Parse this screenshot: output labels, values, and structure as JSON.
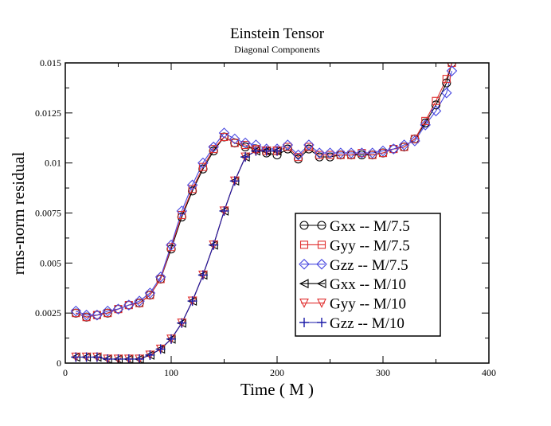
{
  "chart_data": {
    "type": "line",
    "title": "Einstein Tensor",
    "subtitle": "Diagonal Components",
    "xlabel": "Time ( M )",
    "ylabel": "rms-norm residual",
    "xlim": [
      0,
      400
    ],
    "ylim": [
      0,
      0.015
    ],
    "xticks": [
      0,
      100,
      200,
      300,
      400
    ],
    "xtick_labels": [
      "0",
      "100",
      "200",
      "300",
      "400"
    ],
    "yticks": [
      0,
      0.0025,
      0.005,
      0.0075,
      0.01,
      0.0125,
      0.015
    ],
    "ytick_labels": [
      "0",
      "0.0025",
      "0.005",
      "0.0075",
      "0.01",
      "0.0125",
      "0.015"
    ],
    "legend_position": "lower-right",
    "series": [
      {
        "name": "Gxx -- M/7.5",
        "color": "#000000",
        "marker": "circle",
        "x": [
          10,
          20,
          30,
          40,
          50,
          60,
          70,
          80,
          90,
          100,
          110,
          120,
          130,
          140,
          150,
          160,
          170,
          180,
          190,
          200,
          210,
          220,
          230,
          240,
          250,
          260,
          270,
          280,
          290,
          300,
          310,
          320,
          330,
          340,
          350,
          360,
          365
        ],
        "y": [
          0.0025,
          0.0023,
          0.0024,
          0.0025,
          0.0027,
          0.0029,
          0.003,
          0.0034,
          0.0042,
          0.0057,
          0.0073,
          0.0086,
          0.0097,
          0.0106,
          0.0113,
          0.011,
          0.0108,
          0.0107,
          0.0105,
          0.0104,
          0.0107,
          0.0102,
          0.0107,
          0.0103,
          0.0103,
          0.0104,
          0.0104,
          0.0104,
          0.0104,
          0.0105,
          0.0107,
          0.0108,
          0.0112,
          0.012,
          0.0129,
          0.014,
          0.015
        ]
      },
      {
        "name": "Gyy -- M/7.5",
        "color": "#e03030",
        "marker": "square",
        "x": [
          10,
          20,
          30,
          40,
          50,
          60,
          70,
          80,
          90,
          100,
          110,
          120,
          130,
          140,
          150,
          160,
          170,
          180,
          190,
          200,
          210,
          220,
          230,
          240,
          250,
          260,
          270,
          280,
          290,
          300,
          310,
          320,
          330,
          340,
          350,
          360,
          365
        ],
        "y": [
          0.0025,
          0.0023,
          0.0024,
          0.0025,
          0.0027,
          0.0029,
          0.003,
          0.0034,
          0.0042,
          0.0058,
          0.0074,
          0.0087,
          0.0098,
          0.0107,
          0.0113,
          0.011,
          0.0109,
          0.0107,
          0.0106,
          0.0106,
          0.0108,
          0.0103,
          0.0108,
          0.0104,
          0.0104,
          0.0104,
          0.0104,
          0.0105,
          0.0104,
          0.0105,
          0.0107,
          0.0108,
          0.0112,
          0.0121,
          0.0131,
          0.0142,
          0.015
        ]
      },
      {
        "name": "Gzz -- M/7.5",
        "color": "#4a4ae0",
        "marker": "diamond",
        "x": [
          10,
          20,
          30,
          40,
          50,
          60,
          70,
          80,
          90,
          100,
          110,
          120,
          130,
          140,
          150,
          160,
          170,
          180,
          190,
          200,
          210,
          220,
          230,
          240,
          250,
          260,
          270,
          280,
          290,
          300,
          310,
          320,
          330,
          340,
          350,
          360,
          365
        ],
        "y": [
          0.0026,
          0.0024,
          0.0024,
          0.0026,
          0.0027,
          0.0029,
          0.0031,
          0.0035,
          0.0043,
          0.0059,
          0.0076,
          0.0089,
          0.01,
          0.0108,
          0.0115,
          0.0112,
          0.011,
          0.0109,
          0.0107,
          0.0107,
          0.0109,
          0.0104,
          0.0109,
          0.0105,
          0.0105,
          0.0105,
          0.0105,
          0.0105,
          0.0105,
          0.0106,
          0.0107,
          0.0109,
          0.0111,
          0.0119,
          0.0126,
          0.0135,
          0.0146
        ]
      },
      {
        "name": "Gxx -- M/10",
        "color": "#000000",
        "marker": "triangle-left",
        "x": [
          10,
          20,
          30,
          40,
          50,
          60,
          70,
          80,
          90,
          100,
          110,
          120,
          130,
          140,
          150,
          160,
          170,
          180,
          190,
          200
        ],
        "y": [
          0.0003,
          0.0003,
          0.0003,
          0.0002,
          0.0002,
          0.0002,
          0.0002,
          0.0004,
          0.0007,
          0.0012,
          0.002,
          0.0031,
          0.0044,
          0.0059,
          0.0076,
          0.0091,
          0.0103,
          0.0106,
          0.0106,
          0.0106
        ]
      },
      {
        "name": "Gyy -- M/10",
        "color": "#e03030",
        "marker": "triangle-down",
        "x": [
          10,
          20,
          30,
          40,
          50,
          60,
          70,
          80,
          90,
          100,
          110,
          120,
          130,
          140,
          150,
          160,
          170,
          180,
          190,
          200
        ],
        "y": [
          0.0003,
          0.0003,
          0.0003,
          0.0002,
          0.0002,
          0.0002,
          0.0002,
          0.0004,
          0.0007,
          0.0012,
          0.002,
          0.0031,
          0.0044,
          0.0059,
          0.0076,
          0.0091,
          0.0103,
          0.0106,
          0.0106,
          0.0106
        ]
      },
      {
        "name": "Gzz -- M/10",
        "color": "#1a1aa8",
        "marker": "plus",
        "x": [
          10,
          20,
          30,
          40,
          50,
          60,
          70,
          80,
          90,
          100,
          110,
          120,
          130,
          140,
          150,
          160,
          170,
          180,
          190,
          200
        ],
        "y": [
          0.0003,
          0.0003,
          0.0003,
          0.0002,
          0.0002,
          0.0002,
          0.0002,
          0.0004,
          0.0007,
          0.0012,
          0.002,
          0.0031,
          0.0044,
          0.0059,
          0.0076,
          0.0091,
          0.0103,
          0.0106,
          0.0106,
          0.0106
        ]
      }
    ]
  }
}
